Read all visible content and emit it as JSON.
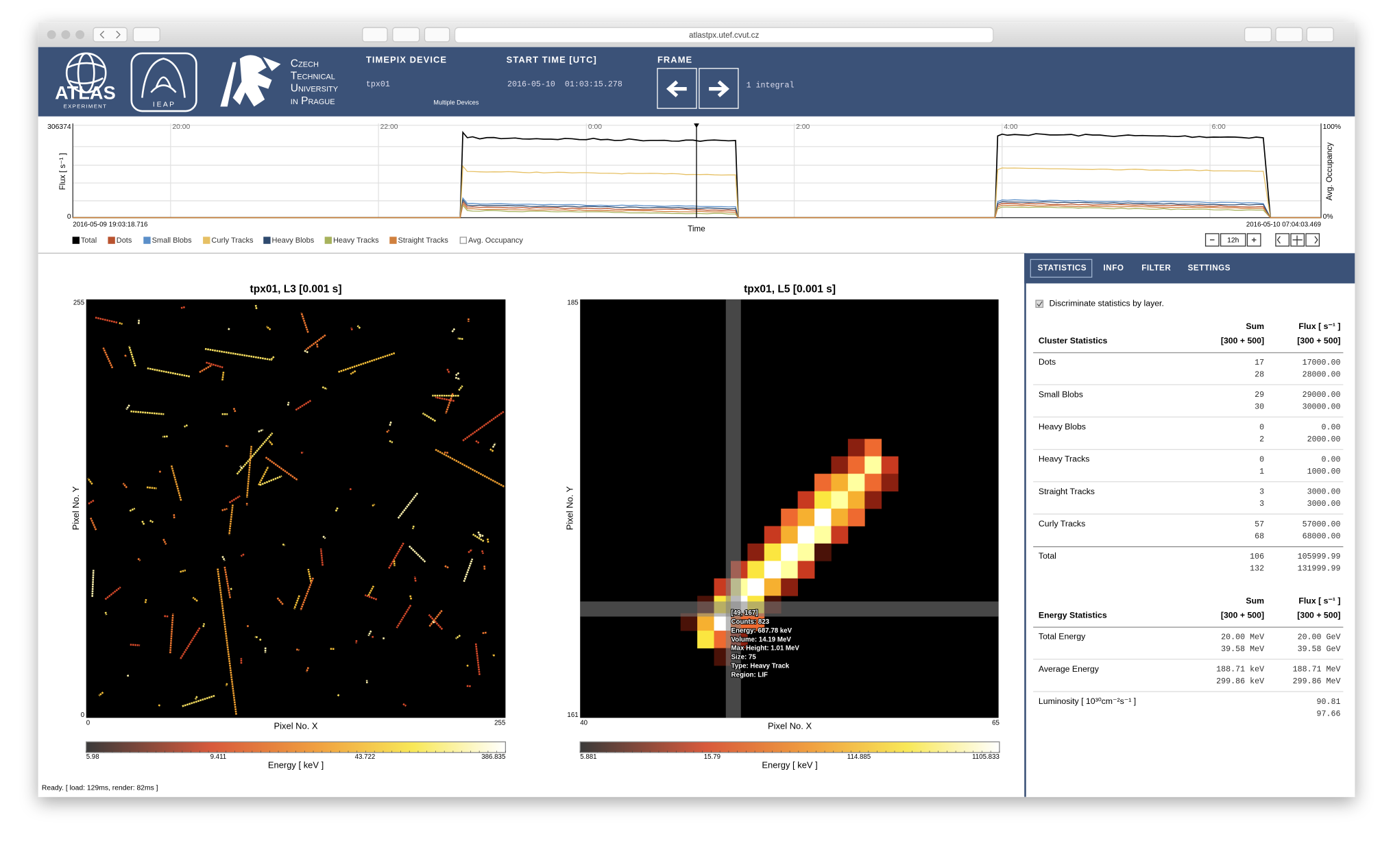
{
  "browser": {
    "url": "atlastpx.utef.cvut.cz"
  },
  "header": {
    "atlas": "ATLAS",
    "atlas_sub": "EXPERIMENT",
    "ieap": "I E A P",
    "ctu": [
      "Czech",
      "Technical",
      "University",
      "in Prague"
    ],
    "device": {
      "label": "TIMEPIX DEVICE",
      "value": "tpx01",
      "link": "Multiple Devices"
    },
    "start_time": {
      "label": "START TIME [UTC]",
      "value": "2016-05-10  01:03:15.278"
    },
    "frame": {
      "label": "FRAME",
      "value": "1 integral"
    }
  },
  "timeline": {
    "y_label": "Flux [ s⁻¹ ]",
    "y2_label": "Avg. Occupancy",
    "x_label": "Time",
    "y_max": "306374",
    "y_min": "0",
    "y2_max": "100%",
    "y2_min": "0%",
    "start": "2016-05-09 19:03:18.716",
    "end": "2016-05-10 07:04:03.469",
    "time_ticks": [
      "20:00",
      "22:00",
      "0:00",
      "2:00",
      "4:00",
      "6:00"
    ],
    "legend": [
      {
        "name": "Total",
        "color": "#000000"
      },
      {
        "name": "Dots",
        "color": "#b9532f"
      },
      {
        "name": "Small Blobs",
        "color": "#5b8fc9"
      },
      {
        "name": "Curly Tracks",
        "color": "#e6c064"
      },
      {
        "name": "Heavy Blobs",
        "color": "#2e4a6e"
      },
      {
        "name": "Heavy Tracks",
        "color": "#a7b25c"
      },
      {
        "name": "Straight Tracks",
        "color": "#d0803e"
      },
      {
        "name": "Avg. Occupancy",
        "color": "#ffffff"
      }
    ],
    "zoom": "12h"
  },
  "plots": [
    {
      "title": "tpx01, L3 [0.001 s]",
      "y_label": "Pixel No. Y",
      "x_label": "Pixel No. X",
      "y_max": "255",
      "y_min": "0",
      "x_min": "0",
      "x_max": "255",
      "colorbar": {
        "ticks": [
          "5.98",
          "9.411",
          "43.722",
          "386.835"
        ],
        "label": "Energy [ keV ]"
      }
    },
    {
      "title": "tpx01, L5 [0.001 s]",
      "y_label": "Pixel No. Y",
      "x_label": "Pixel No. X",
      "y_max": "185",
      "y_min": "161",
      "x_min": "40",
      "x_max": "65",
      "colorbar": {
        "ticks": [
          "5.881",
          "15.79",
          "114.885",
          "1105.833"
        ],
        "label": "Energy [ keV ]"
      },
      "tooltip": [
        "[49, 167]",
        "Counts: 823",
        "Energy: 687.78 keV",
        "Volume: 14.19 MeV",
        "Max Height: 1.01 MeV",
        "Size: 75",
        "Type: Heavy Track",
        "Region: LIF"
      ]
    }
  ],
  "status": "Ready. [ load: 129ms, render: 82ms ]",
  "panel": {
    "tabs": [
      "STATISTICS",
      "INFO",
      "FILTER",
      "SETTINGS"
    ],
    "checkbox": "Discriminate statistics by layer.",
    "cluster": {
      "title": "Cluster Statistics",
      "sum_head": [
        "Sum",
        "[300 + 500]"
      ],
      "flux_head": [
        "Flux [ s⁻¹ ]",
        "[300 + 500]"
      ],
      "rows": [
        {
          "name": "Dots",
          "sum": [
            "17",
            "28"
          ],
          "flux": [
            "17000.00",
            "28000.00"
          ]
        },
        {
          "name": "Small Blobs",
          "sum": [
            "29",
            "30"
          ],
          "flux": [
            "29000.00",
            "30000.00"
          ]
        },
        {
          "name": "Heavy Blobs",
          "sum": [
            "0",
            "2"
          ],
          "flux": [
            "0.00",
            "2000.00"
          ]
        },
        {
          "name": "Heavy Tracks",
          "sum": [
            "0",
            "1"
          ],
          "flux": [
            "0.00",
            "1000.00"
          ]
        },
        {
          "name": "Straight Tracks",
          "sum": [
            "3",
            "3"
          ],
          "flux": [
            "3000.00",
            "3000.00"
          ]
        },
        {
          "name": "Curly Tracks",
          "sum": [
            "57",
            "68"
          ],
          "flux": [
            "57000.00",
            "68000.00"
          ]
        },
        {
          "name": "Total",
          "sum": [
            "106",
            "132"
          ],
          "flux": [
            "105999.99",
            "131999.99"
          ]
        }
      ]
    },
    "energy": {
      "title": "Energy Statistics",
      "sum_head": [
        "Sum",
        "[300 + 500]"
      ],
      "flux_head": [
        "Flux [ s⁻¹ ]",
        "[300 + 500]"
      ],
      "rows": [
        {
          "name": "Total Energy",
          "sum": [
            "20.00 MeV",
            "39.58 MeV"
          ],
          "flux": [
            "20.00 GeV",
            "39.58 GeV"
          ]
        },
        {
          "name": "Average Energy",
          "sum": [
            "188.71 keV",
            "299.86 keV"
          ],
          "flux": [
            "188.71 MeV",
            "299.86 MeV"
          ]
        },
        {
          "name": "Luminosity [ 10³⁰cm⁻²s⁻¹ ]",
          "flux": [
            "90.81",
            "97.66"
          ]
        }
      ]
    }
  }
}
